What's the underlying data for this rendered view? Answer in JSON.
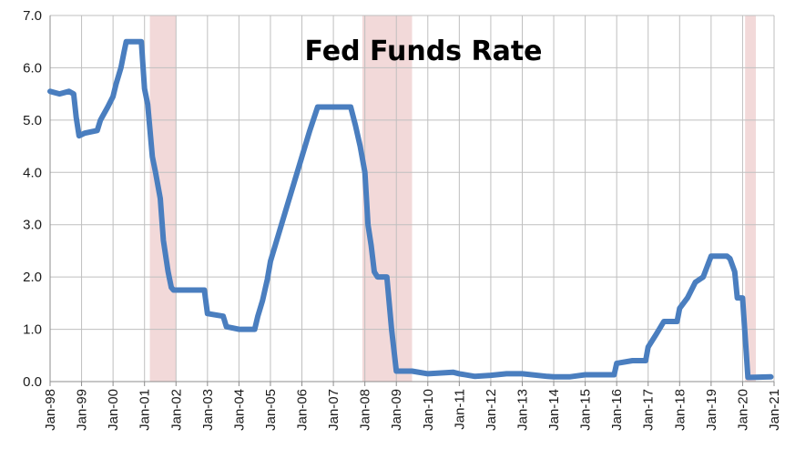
{
  "chart_data": {
    "type": "line",
    "title": "Fed Funds Rate",
    "xlabel": "",
    "ylabel": "",
    "x_unit": "years",
    "xlim": [
      1998.0,
      2021.0
    ],
    "ylim": [
      0,
      7
    ],
    "grid": true,
    "legend": "none",
    "y_ticks": [
      "0.0",
      "1.0",
      "2.0",
      "3.0",
      "4.0",
      "5.0",
      "6.0",
      "7.0"
    ],
    "x_ticks": [
      "Jan-98",
      "Jan-99",
      "Jan-00",
      "Jan-01",
      "Jan-02",
      "Jan-03",
      "Jan-04",
      "Jan-05",
      "Jan-06",
      "Jan-07",
      "Jan-08",
      "Jan-09",
      "Jan-10",
      "Jan-11",
      "Jan-12",
      "Jan-13",
      "Jan-14",
      "Jan-15",
      "Jan-16",
      "Jan-17",
      "Jan-18",
      "Jan-19",
      "Jan-20",
      "Jan-21"
    ],
    "recessions": [
      {
        "start": 2001.17,
        "end": 2002.0
      },
      {
        "start": 2007.92,
        "end": 2009.5
      },
      {
        "start": 2020.08,
        "end": 2020.42
      }
    ],
    "series": [
      {
        "color": "#4a7ebf",
        "x": [
          1998.0,
          1998.3,
          1998.6,
          1998.75,
          1998.83,
          1998.92,
          1999.1,
          1999.5,
          1999.6,
          1999.83,
          2000.0,
          2000.1,
          2000.25,
          2000.35,
          2000.42,
          2000.9,
          2001.0,
          2001.1,
          2001.25,
          2001.35,
          2001.5,
          2001.6,
          2001.75,
          2001.85,
          2001.92,
          2002.5,
          2002.9,
          2003.0,
          2003.5,
          2003.6,
          2004.0,
          2004.5,
          2004.6,
          2004.75,
          2004.9,
          2005.0,
          2005.25,
          2005.5,
          2005.75,
          2006.0,
          2006.25,
          2006.5,
          2006.55,
          2007.55,
          2007.7,
          2007.85,
          2008.0,
          2008.1,
          2008.2,
          2008.3,
          2008.4,
          2008.7,
          2008.85,
          2009.0,
          2009.5,
          2010.0,
          2010.8,
          2011.0,
          2011.5,
          2012.0,
          2012.5,
          2013.0,
          2013.8,
          2014.0,
          2014.5,
          2015.0,
          2015.92,
          2016.0,
          2016.5,
          2016.92,
          2017.0,
          2017.25,
          2017.5,
          2017.92,
          2018.0,
          2018.25,
          2018.5,
          2018.75,
          2019.0,
          2019.5,
          2019.6,
          2019.75,
          2019.83,
          2020.0,
          2020.17,
          2020.25,
          2020.9
        ],
        "values": [
          5.55,
          5.5,
          5.55,
          5.5,
          5.05,
          4.7,
          4.75,
          4.8,
          5.0,
          5.25,
          5.45,
          5.7,
          6.0,
          6.3,
          6.5,
          6.5,
          5.6,
          5.3,
          4.3,
          4.0,
          3.5,
          2.7,
          2.1,
          1.8,
          1.75,
          1.75,
          1.75,
          1.3,
          1.25,
          1.05,
          1.0,
          1.0,
          1.25,
          1.55,
          1.95,
          2.3,
          2.8,
          3.3,
          3.8,
          4.3,
          4.8,
          5.25,
          5.25,
          5.25,
          4.9,
          4.5,
          4.0,
          3.0,
          2.6,
          2.1,
          2.0,
          2.0,
          1.0,
          0.2,
          0.2,
          0.15,
          0.18,
          0.15,
          0.1,
          0.12,
          0.15,
          0.15,
          0.1,
          0.09,
          0.09,
          0.13,
          0.13,
          0.35,
          0.4,
          0.4,
          0.66,
          0.9,
          1.15,
          1.15,
          1.4,
          1.6,
          1.9,
          2.0,
          2.4,
          2.4,
          2.35,
          2.1,
          1.6,
          1.6,
          0.08,
          0.08,
          0.09
        ]
      }
    ]
  }
}
